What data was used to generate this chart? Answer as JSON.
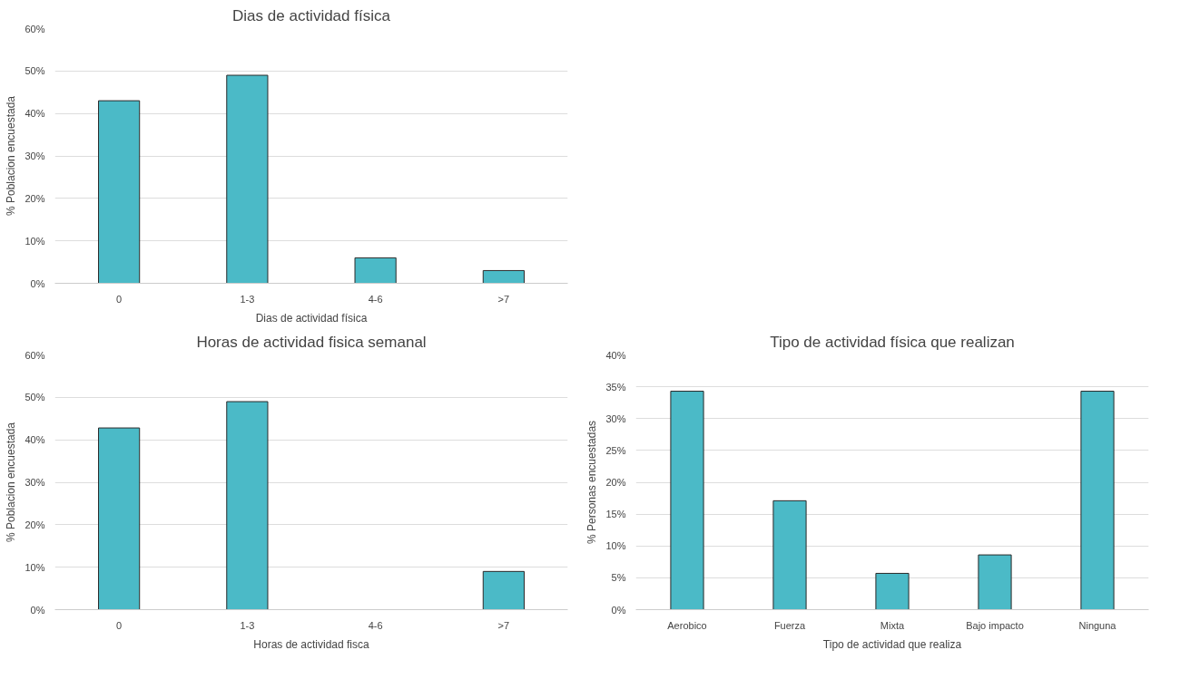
{
  "chart_data": [
    {
      "type": "bar",
      "title": "Dias de actividad física",
      "xlabel": "Dias de actividad física",
      "ylabel": "% Poblacion encuestada",
      "categories": [
        "0",
        "1-3",
        "4-6",
        ">7"
      ],
      "values": [
        43,
        49,
        6,
        3
      ],
      "color": "#4bbac7",
      "ylim": [
        0,
        60
      ],
      "yticks": [
        {
          "value": 0,
          "label": "0%"
        },
        {
          "value": 10,
          "label": "10%"
        },
        {
          "value": 20,
          "label": "20%"
        },
        {
          "value": 30,
          "label": "30%"
        },
        {
          "value": 40,
          "label": "40%"
        },
        {
          "value": 50,
          "label": "50%"
        },
        {
          "value": 60,
          "label": "60%"
        }
      ],
      "grid": "y"
    },
    {
      "type": "bar",
      "title": "Horas de actividad fisica semanal",
      "xlabel": "Horas de actividad fisca",
      "ylabel": "% Poblacion encuestada",
      "categories": [
        "0",
        "1-3",
        "4-6",
        ">7"
      ],
      "values": [
        42.8,
        49,
        null,
        9
      ],
      "color": "#4bbac7",
      "ylim": [
        0,
        60
      ],
      "yticks": [
        {
          "value": 0,
          "label": "0%"
        },
        {
          "value": 10,
          "label": "10%"
        },
        {
          "value": 20,
          "label": "20%"
        },
        {
          "value": 30,
          "label": "30%"
        },
        {
          "value": 40,
          "label": "40%"
        },
        {
          "value": 50,
          "label": "50%"
        },
        {
          "value": 60,
          "label": "60%"
        }
      ],
      "grid": "y"
    },
    {
      "type": "bar",
      "title": "Tipo de actividad física que realizan",
      "xlabel": "Tipo de actividad que realiza",
      "ylabel": "% Personas encuestadas",
      "categories": [
        "Aerobico",
        "Fuerza",
        "Mixta",
        "Bajo impacto",
        "Ninguna"
      ],
      "values": [
        34.3,
        17.1,
        5.7,
        8.6,
        34.3
      ],
      "color": "#4bbac7",
      "ylim": [
        0,
        40
      ],
      "yticks": [
        {
          "value": 0,
          "label": "0%"
        },
        {
          "value": 5,
          "label": "5%"
        },
        {
          "value": 10,
          "label": "10%"
        },
        {
          "value": 15,
          "label": "15%"
        },
        {
          "value": 20,
          "label": "20%"
        },
        {
          "value": 25,
          "label": "25%"
        },
        {
          "value": 30,
          "label": "30%"
        },
        {
          "value": 35,
          "label": "35%"
        },
        {
          "value": 40,
          "label": "40%"
        }
      ],
      "grid": "y"
    }
  ]
}
